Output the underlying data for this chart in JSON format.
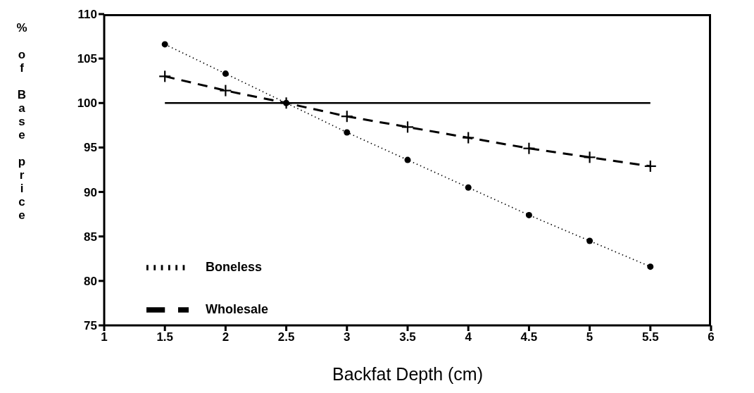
{
  "chart_data": {
    "type": "line",
    "xlabel": "Backfat Depth (cm)",
    "ylabel": "% of Base price",
    "x": [
      1.5,
      2,
      2.5,
      3,
      3.5,
      4,
      4.5,
      5,
      5.5
    ],
    "series": [
      {
        "name": "Boneless",
        "color": "#000000",
        "line_style": "dotted",
        "marker": "circle",
        "values": [
          106.6,
          103.3,
          100,
          96.7,
          93.6,
          90.5,
          87.4,
          84.5,
          81.6
        ]
      },
      {
        "name": "Wholesale",
        "color": "#000000",
        "line_style": "dashed",
        "marker": "cross",
        "values": [
          103,
          101.4,
          100,
          98.5,
          97.3,
          96.1,
          94.9,
          93.9,
          92.9
        ]
      },
      {
        "color": "#000000",
        "line_style": "solid",
        "marker": "none",
        "values": [
          100,
          100,
          100,
          100,
          100,
          100,
          100,
          100,
          100
        ]
      }
    ],
    "xlim": [
      1,
      6
    ],
    "xticks": [
      1,
      1.5,
      2,
      2.5,
      3,
      3.5,
      4,
      4.5,
      5,
      5.5,
      6
    ],
    "ylim": [
      75,
      110
    ],
    "yticks": [
      75,
      80,
      85,
      90,
      95,
      100,
      105,
      110
    ],
    "grid": false,
    "legend": "bottom left"
  }
}
